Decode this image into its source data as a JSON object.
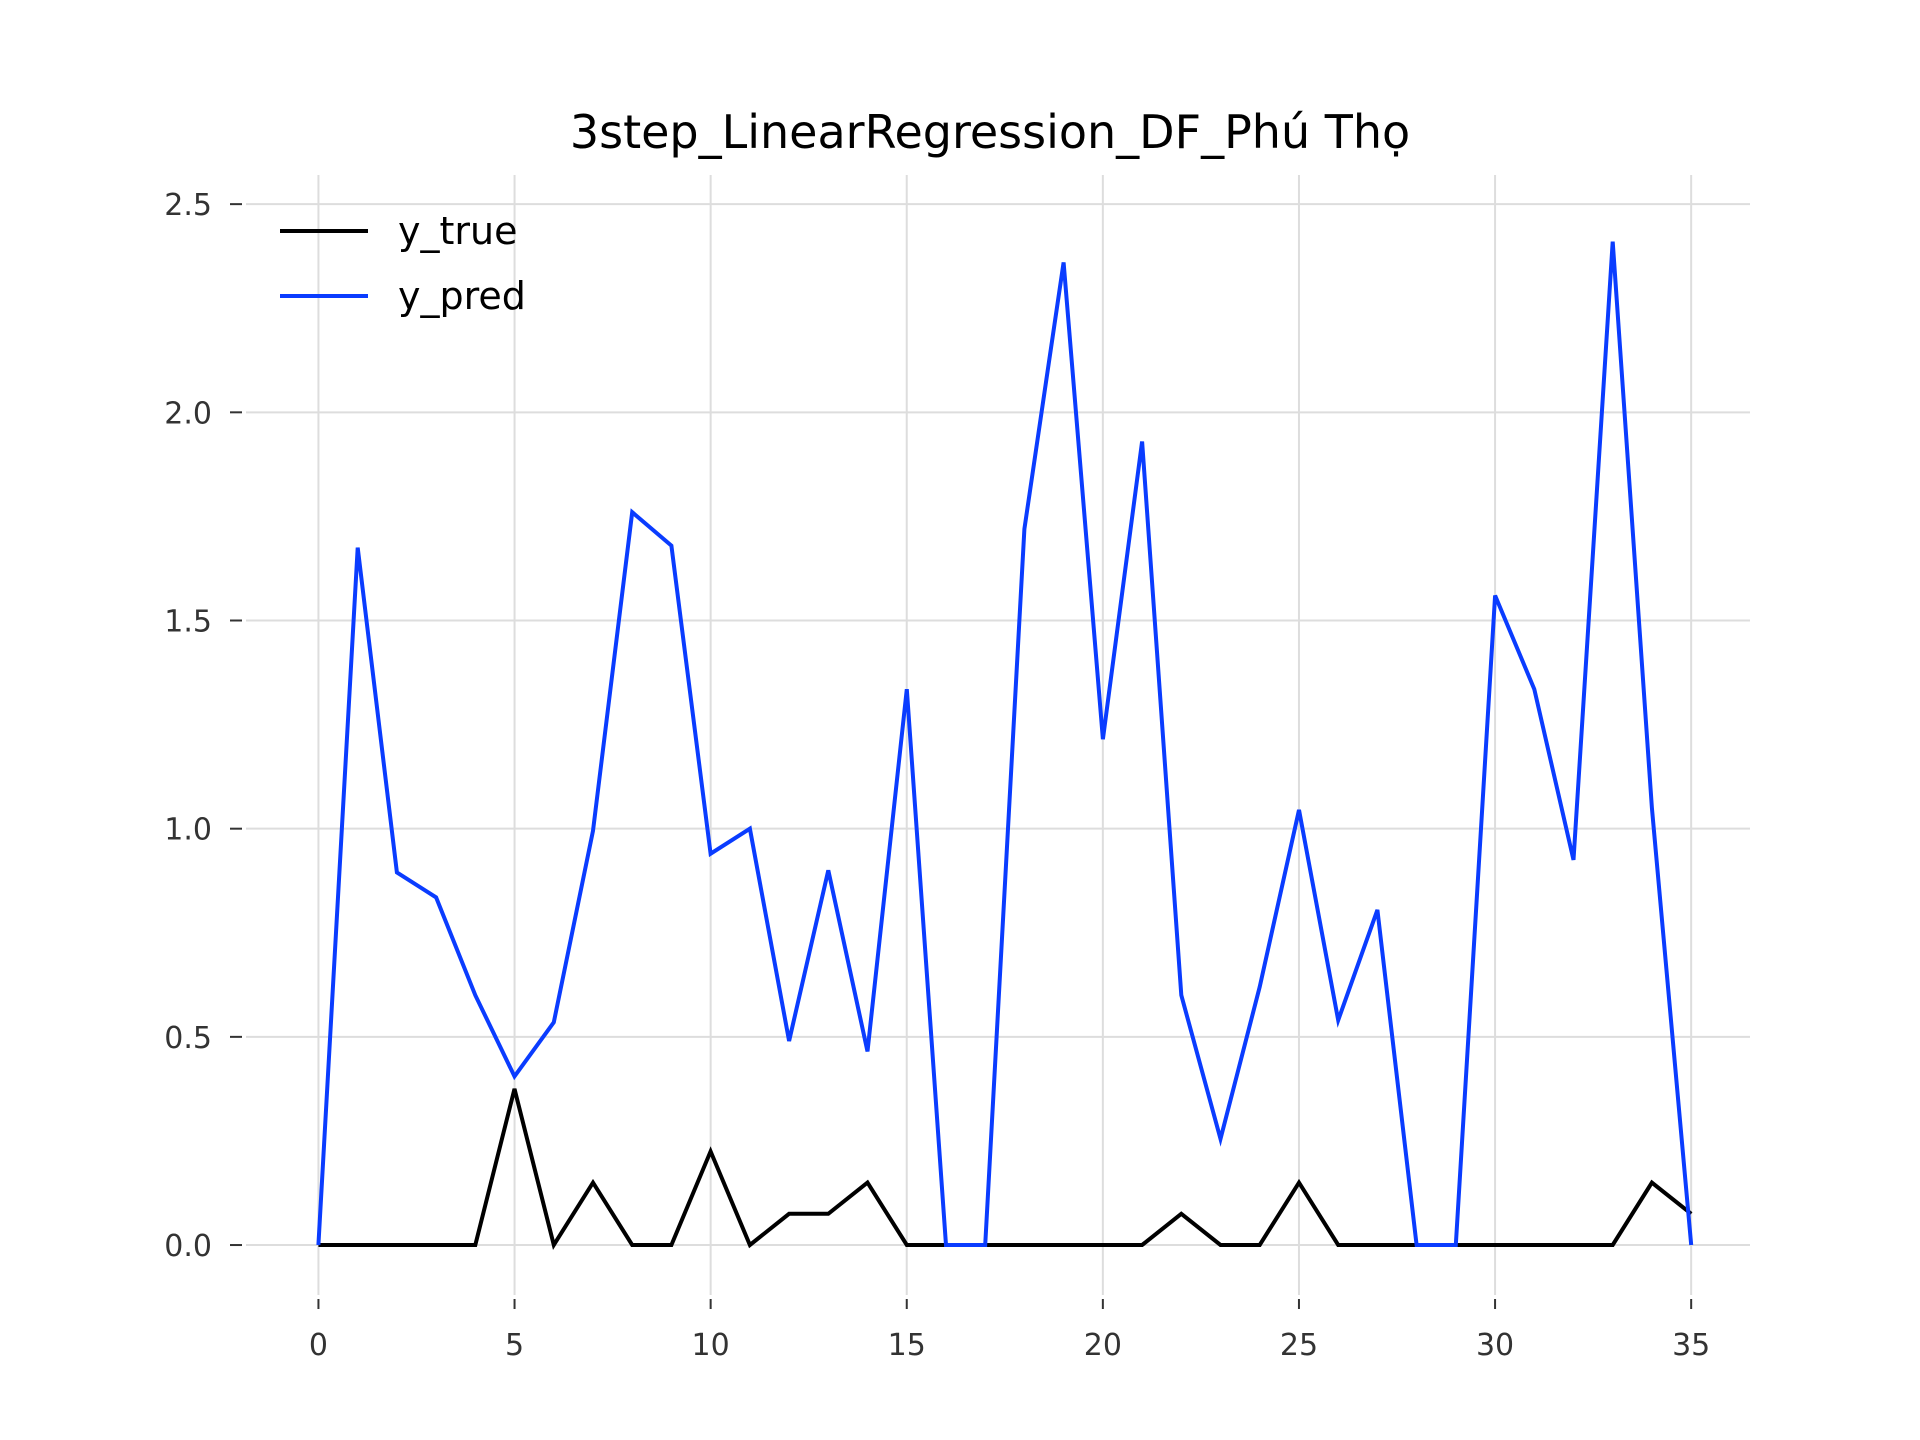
{
  "chart_data": {
    "type": "line",
    "title": "3step_LinearRegression_DF_Phú Thọ",
    "xlabel": "",
    "ylabel": "",
    "xlim": [
      -2,
      36.5
    ],
    "ylim": [
      -0.12,
      2.57
    ],
    "x_ticks": [
      0,
      5,
      10,
      15,
      20,
      25,
      30,
      35
    ],
    "y_ticks": [
      0.0,
      0.5,
      1.0,
      1.5,
      2.0,
      2.5
    ],
    "x_tick_labels": [
      "0",
      "5",
      "10",
      "15",
      "20",
      "25",
      "30",
      "35"
    ],
    "y_tick_labels": [
      "0.0",
      "0.5",
      "1.0",
      "1.5",
      "2.0",
      "2.5"
    ],
    "grid": true,
    "legend_position": "top-left",
    "x": [
      0,
      1,
      2,
      3,
      4,
      5,
      6,
      7,
      8,
      9,
      10,
      11,
      12,
      13,
      14,
      15,
      16,
      17,
      18,
      19,
      20,
      21,
      22,
      23,
      24,
      25,
      26,
      27,
      28,
      29,
      30,
      31,
      32,
      33,
      34,
      35
    ],
    "series": [
      {
        "name": "y_true",
        "color": "#000000",
        "values": [
          0,
          0,
          0,
          0,
          0,
          0.375,
          0,
          0.15,
          0,
          0,
          0.225,
          0,
          0.075,
          0.075,
          0.15,
          0,
          0,
          0,
          0,
          0,
          0,
          0,
          0.075,
          0,
          0,
          0.15,
          0,
          0,
          0,
          0,
          0,
          0,
          0,
          0,
          0.15,
          0.075
        ]
      },
      {
        "name": "y_pred",
        "color": "#0a3cff",
        "values": [
          0,
          1.675,
          0.895,
          0.835,
          0.6,
          0.405,
          0.535,
          0.995,
          1.76,
          1.68,
          0.94,
          1.0,
          0.49,
          0.9,
          0.465,
          1.335,
          0,
          0,
          1.72,
          2.36,
          1.215,
          1.93,
          0.6,
          0.255,
          0.62,
          1.045,
          0.54,
          0.805,
          0,
          0,
          1.56,
          1.335,
          0.925,
          2.41,
          1.05,
          0
        ]
      }
    ]
  }
}
